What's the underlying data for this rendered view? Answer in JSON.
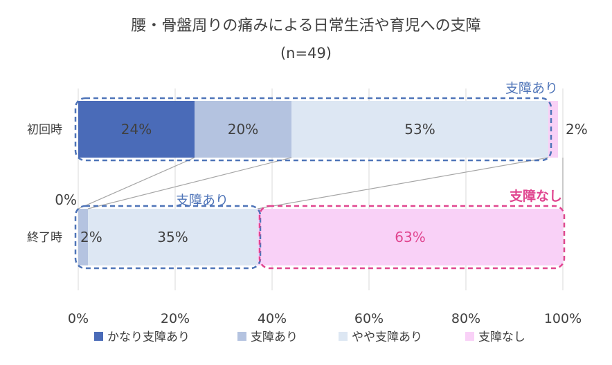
{
  "chart_data": {
    "type": "bar",
    "orientation": "horizontal",
    "stacked": "100%",
    "title": "腰・骨盤周りの痛みによる日常生活や育児への支障",
    "subtitle": "(n=49)",
    "categories": [
      "初回時",
      "終了時"
    ],
    "series": [
      {
        "name": "かなり支障あり",
        "color": "#4a6bb8",
        "values": [
          24,
          0
        ],
        "labels": [
          "24%",
          "0%"
        ]
      },
      {
        "name": "支障あり",
        "color": "#b4c3e0",
        "values": [
          20,
          2
        ],
        "labels": [
          "20%",
          "2%"
        ]
      },
      {
        "name": "やや支障あり",
        "color": "#dde7f3",
        "values": [
          53,
          35
        ],
        "labels": [
          "53%",
          "35%"
        ]
      },
      {
        "name": "支障なし",
        "color": "#f9d1f7",
        "values": [
          2,
          63
        ],
        "labels": [
          "2%",
          "63%"
        ]
      }
    ],
    "xlim": [
      0,
      100
    ],
    "xticks": [
      "0%",
      "20%",
      "40%",
      "60%",
      "80%",
      "100%"
    ],
    "grid": true,
    "legend_position": "bottom",
    "annotations": {
      "top_group": "支障あり",
      "bottom_group_affected": "支障あり",
      "bottom_group_none": "支障なし"
    },
    "colors": {
      "blue_annotation": "#4e74b8",
      "pink_annotation": "#e0458f"
    }
  }
}
